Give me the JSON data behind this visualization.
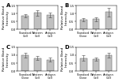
{
  "panels": [
    {
      "label": "A",
      "ylabel": "Relative Band\nIntensity",
      "ylim": [
        0,
        1.5
      ],
      "yticks": [
        0,
        0.5,
        1.0,
        1.5
      ],
      "bars": [
        0.85,
        1.05,
        0.9
      ],
      "errors": [
        0.1,
        0.18,
        0.15
      ],
      "categories": [
        "Standard\nCell",
        "Western\nCell",
        "Antigen\nCell"
      ]
    },
    {
      "label": "B",
      "ylabel": "Relative Band\nIntensity",
      "ylim": [
        0,
        1.5
      ],
      "yticks": [
        0,
        0.5,
        1.0,
        1.5
      ],
      "bars": [
        0.6,
        0.65,
        1.1
      ],
      "errors": [
        0.1,
        0.12,
        0.28
      ],
      "categories": [
        "Standard\nClone",
        "Western\nCell",
        "Antigen\nCell"
      ]
    },
    {
      "label": "C",
      "ylabel": "Relative Band\nIntensity",
      "ylim": [
        0,
        1.5
      ],
      "yticks": [
        0,
        0.5,
        1.0,
        1.5
      ],
      "bars": [
        1.0,
        0.82,
        0.72
      ],
      "errors": [
        0.15,
        0.12,
        0.13
      ],
      "categories": [
        "Standard\nClone",
        "Western\nCell",
        "Antigen\nCell"
      ]
    },
    {
      "label": "D",
      "ylabel": "Relative Band\nIntensity",
      "ylim": [
        0,
        1.5
      ],
      "yticks": [
        0,
        0.5,
        1.0,
        1.5
      ],
      "bars": [
        0.82,
        0.75,
        1.0
      ],
      "errors": [
        0.18,
        0.1,
        0.15
      ],
      "categories": [
        "Standard\nClone",
        "Western\nCell",
        "Antigen\nCell"
      ]
    }
  ],
  "bar_color": "#c0c0c0",
  "bar_edgecolor": "#666666",
  "error_color": "#444444",
  "background_color": "#ffffff",
  "panel_label_fontsize": 5.0,
  "tick_fontsize": 2.8,
  "ylabel_fontsize": 3.2,
  "xtick_fontsize": 2.5,
  "bar_width": 0.55
}
